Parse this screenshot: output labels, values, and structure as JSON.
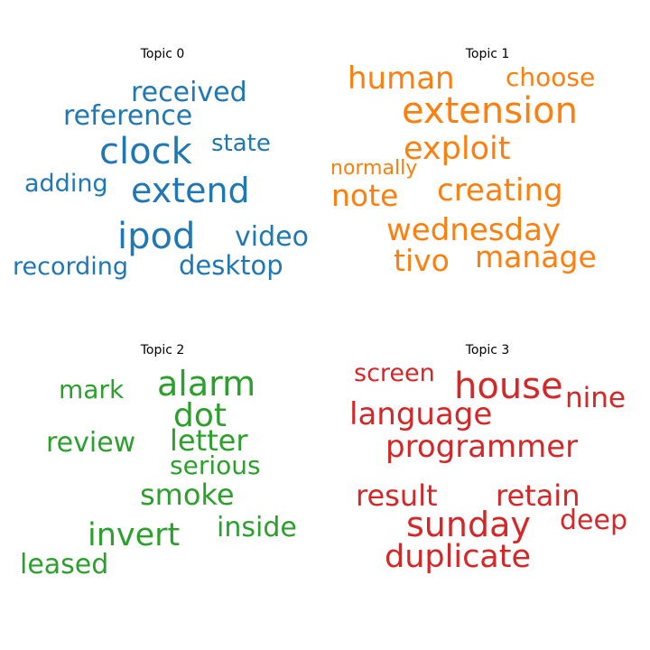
{
  "chart_data": [
    {
      "type": "wordcloud",
      "title": "Topic 0",
      "color": "#1f77b4",
      "words": [
        {
          "text": "received",
          "weight": 30
        },
        {
          "text": "reference",
          "weight": 30
        },
        {
          "text": "clock",
          "weight": 40
        },
        {
          "text": "state",
          "weight": 26
        },
        {
          "text": "adding",
          "weight": 27
        },
        {
          "text": "extend",
          "weight": 38
        },
        {
          "text": "ipod",
          "weight": 40
        },
        {
          "text": "video",
          "weight": 30
        },
        {
          "text": "recording",
          "weight": 27
        },
        {
          "text": "desktop",
          "weight": 29
        }
      ]
    },
    {
      "type": "wordcloud",
      "title": "Topic 1",
      "color": "#ff7f0e",
      "words": [
        {
          "text": "human",
          "weight": 34
        },
        {
          "text": "choose",
          "weight": 28
        },
        {
          "text": "extension",
          "weight": 40
        },
        {
          "text": "exploit",
          "weight": 35
        },
        {
          "text": "normally",
          "weight": 22
        },
        {
          "text": "note",
          "weight": 33
        },
        {
          "text": "creating",
          "weight": 34
        },
        {
          "text": "wednesday",
          "weight": 34
        },
        {
          "text": "tivo",
          "weight": 33
        },
        {
          "text": "manage",
          "weight": 33
        }
      ]
    },
    {
      "type": "wordcloud",
      "title": "Topic 2",
      "color": "#2ca02c",
      "words": [
        {
          "text": "mark",
          "weight": 28
        },
        {
          "text": "alarm",
          "weight": 38
        },
        {
          "text": "dot",
          "weight": 36
        },
        {
          "text": "review",
          "weight": 30
        },
        {
          "text": "letter",
          "weight": 32
        },
        {
          "text": "serious",
          "weight": 28
        },
        {
          "text": "smoke",
          "weight": 32
        },
        {
          "text": "invert",
          "weight": 35
        },
        {
          "text": "inside",
          "weight": 30
        },
        {
          "text": "leased",
          "weight": 30
        }
      ]
    },
    {
      "type": "wordcloud",
      "title": "Topic 3",
      "color": "#d62728",
      "words": [
        {
          "text": "screen",
          "weight": 27
        },
        {
          "text": "house",
          "weight": 40
        },
        {
          "text": "nine",
          "weight": 31
        },
        {
          "text": "language",
          "weight": 34
        },
        {
          "text": "programmer",
          "weight": 34
        },
        {
          "text": "result",
          "weight": 32
        },
        {
          "text": "retain",
          "weight": 32
        },
        {
          "text": "sunday",
          "weight": 38
        },
        {
          "text": "deep",
          "weight": 30
        },
        {
          "text": "duplicate",
          "weight": 35
        }
      ]
    }
  ]
}
